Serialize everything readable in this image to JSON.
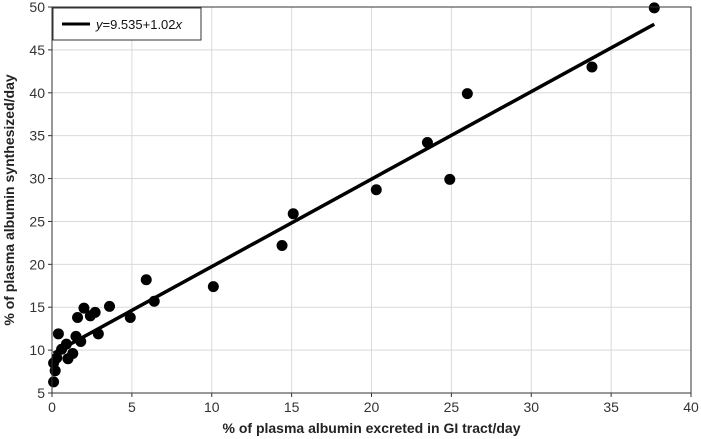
{
  "chart_data": {
    "type": "scatter",
    "title": "",
    "xlabel": "% of plasma albumin excreted in GI tract/day",
    "ylabel": "% of plasma albumin synthesized/day",
    "xlim": [
      0,
      40
    ],
    "ylim": [
      5,
      50
    ],
    "x_ticks": [
      0,
      5,
      10,
      15,
      20,
      25,
      30,
      35,
      40
    ],
    "y_ticks": [
      5,
      10,
      15,
      20,
      25,
      30,
      35,
      40,
      45,
      50
    ],
    "grid": true,
    "legend_position": "top-left",
    "colors": {
      "points": "#000000",
      "line": "#000000",
      "grid": "#d9d9d9"
    },
    "series": [
      {
        "type": "scatter",
        "points": [
          {
            "x": 0.1,
            "y": 6.3
          },
          {
            "x": 0.2,
            "y": 7.6
          },
          {
            "x": 0.1,
            "y": 8.5
          },
          {
            "x": 0.3,
            "y": 9.1
          },
          {
            "x": 0.4,
            "y": 11.9
          },
          {
            "x": 0.6,
            "y": 10.1
          },
          {
            "x": 0.9,
            "y": 10.7
          },
          {
            "x": 1.0,
            "y": 9.0
          },
          {
            "x": 1.3,
            "y": 9.6
          },
          {
            "x": 1.5,
            "y": 11.6
          },
          {
            "x": 1.6,
            "y": 13.8
          },
          {
            "x": 1.8,
            "y": 11.0
          },
          {
            "x": 2.0,
            "y": 14.9
          },
          {
            "x": 2.4,
            "y": 14.0
          },
          {
            "x": 2.7,
            "y": 14.4
          },
          {
            "x": 2.9,
            "y": 11.9
          },
          {
            "x": 3.6,
            "y": 15.1
          },
          {
            "x": 4.9,
            "y": 13.8
          },
          {
            "x": 5.9,
            "y": 18.2
          },
          {
            "x": 6.4,
            "y": 15.7
          },
          {
            "x": 10.1,
            "y": 17.4
          },
          {
            "x": 14.4,
            "y": 22.2
          },
          {
            "x": 15.1,
            "y": 25.9
          },
          {
            "x": 20.3,
            "y": 28.7
          },
          {
            "x": 23.5,
            "y": 34.2
          },
          {
            "x": 24.9,
            "y": 29.9
          },
          {
            "x": 26.0,
            "y": 39.9
          },
          {
            "x": 33.8,
            "y": 43.0
          },
          {
            "x": 37.7,
            "y": 49.9
          }
        ]
      },
      {
        "type": "line",
        "name": "y=9.535+1.02x",
        "intercept": 9.535,
        "slope": 1.02,
        "x_range": [
          0.1,
          37.7
        ]
      }
    ],
    "legend": {
      "label_y": "y",
      "label_rest": "=9.535+1.02",
      "label_x": "x"
    }
  }
}
